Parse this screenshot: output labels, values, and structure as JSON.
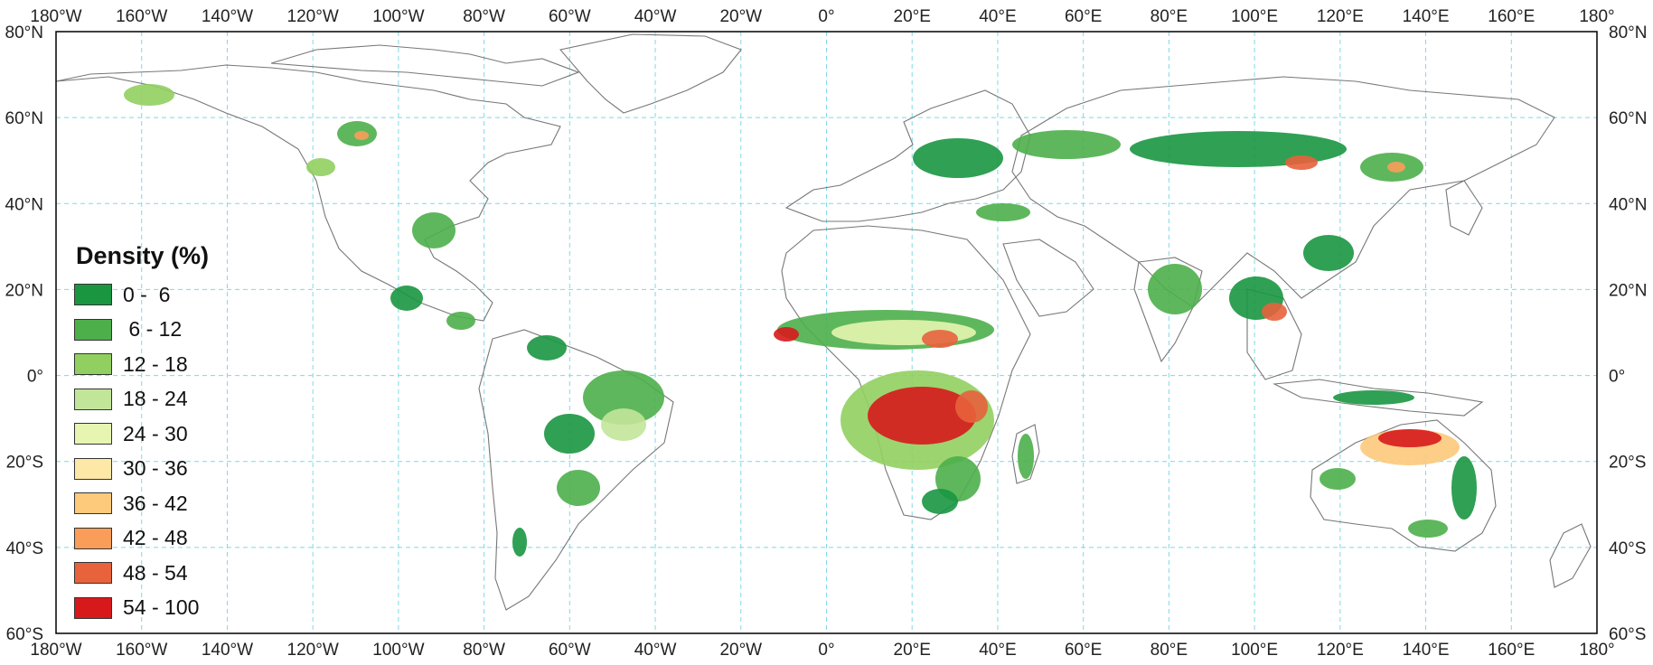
{
  "legend": {
    "title": "Density (%)",
    "items": [
      {
        "label": "0 -  6",
        "color": "#1a9641"
      },
      {
        "label": " 6 - 12",
        "color": "#4daf4a"
      },
      {
        "label": "12 - 18",
        "color": "#91cf60"
      },
      {
        "label": "18 - 24",
        "color": "#c2e699"
      },
      {
        "label": "24 - 30",
        "color": "#e6f5b0"
      },
      {
        "label": "30 - 36",
        "color": "#fee8a8"
      },
      {
        "label": "36 - 42",
        "color": "#fdc97a"
      },
      {
        "label": "42 - 48",
        "color": "#f99d59"
      },
      {
        "label": "48 - 54",
        "color": "#e8623c"
      },
      {
        "label": "54 - 100",
        "color": "#d7191c"
      }
    ]
  },
  "longitude_labels": [
    "180°W",
    "160°W",
    "140°W",
    "120°W",
    "100°W",
    "80°W",
    "60°W",
    "40°W",
    "20°W",
    "0°",
    "20°E",
    "40°E",
    "60°E",
    "80°E",
    "100°E",
    "120°E",
    "140°E",
    "160°E",
    "180°"
  ],
  "latitude_labels": [
    "80°N",
    "60°N",
    "40°N",
    "20°N",
    "0°",
    "20°S",
    "40°S",
    "60°S"
  ],
  "colors": {
    "graticule": "#7fd9e8",
    "coastline": "#777777",
    "frame": "#000000"
  }
}
